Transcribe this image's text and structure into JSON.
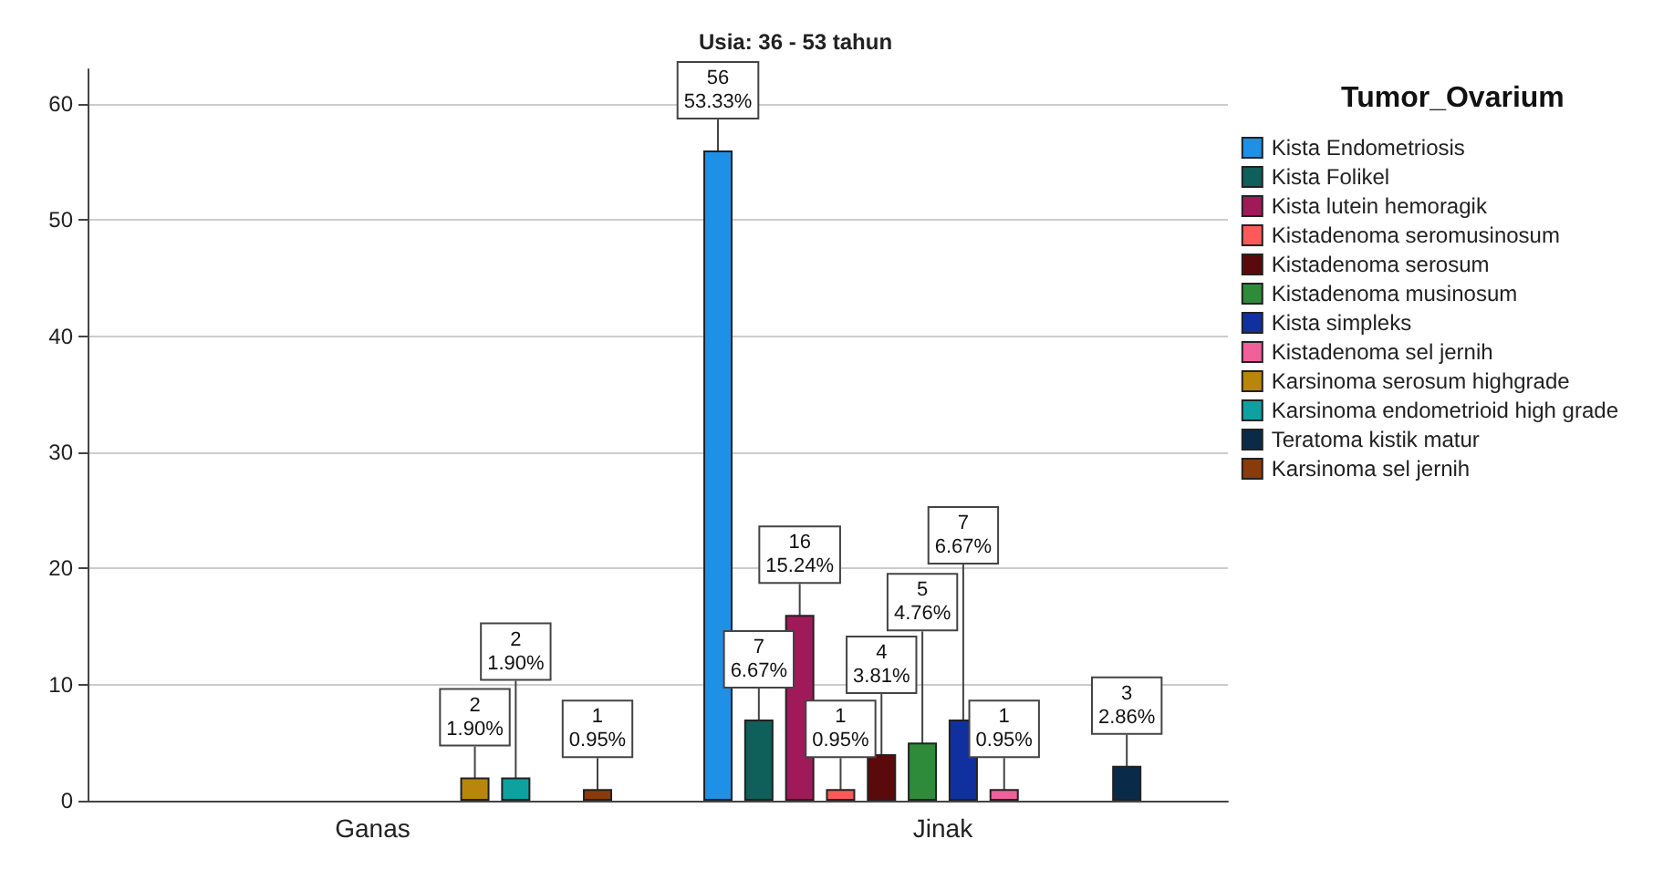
{
  "chart_data": {
    "type": "bar",
    "title": "Usia: 36 - 53 tahun",
    "legend_title": "Tumor_Ovarium",
    "categories": [
      "Ganas",
      "Jinak"
    ],
    "series": [
      {
        "name": "Kista Endometriosis",
        "color": "#1e90e6",
        "values": [
          null,
          56
        ],
        "value_labels": [
          null,
          "56\n53.33%"
        ]
      },
      {
        "name": "Kista Folikel",
        "color": "#0f5f5a",
        "values": [
          null,
          7
        ],
        "value_labels": [
          null,
          "7\n6.67%"
        ]
      },
      {
        "name": "Kista lutein hemoragik",
        "color": "#a01a5a",
        "values": [
          null,
          16
        ],
        "value_labels": [
          null,
          "16\n15.24%"
        ]
      },
      {
        "name": "Kistadenoma seromusinosum",
        "color": "#ff5a5a",
        "values": [
          null,
          1
        ],
        "value_labels": [
          null,
          "1\n0.95%"
        ]
      },
      {
        "name": "Kistadenoma serosum",
        "color": "#5a0a0a",
        "values": [
          null,
          4
        ],
        "value_labels": [
          null,
          "4\n3.81%"
        ]
      },
      {
        "name": "Kistadenoma musinosum",
        "color": "#2e8b3a",
        "values": [
          null,
          5
        ],
        "value_labels": [
          null,
          "5\n4.76%"
        ]
      },
      {
        "name": "Kista simpleks",
        "color": "#1030a0",
        "values": [
          null,
          7
        ],
        "value_labels": [
          null,
          "7\n6.67%"
        ]
      },
      {
        "name": "Kistadenoma sel jernih",
        "color": "#f0609a",
        "values": [
          null,
          1
        ],
        "value_labels": [
          null,
          "1\n0.95%"
        ]
      },
      {
        "name": "Karsinoma serosum highgrade",
        "color": "#b8860b",
        "values": [
          2,
          null
        ],
        "value_labels": [
          "2\n1.90%",
          null
        ]
      },
      {
        "name": "Karsinoma endometrioid high grade",
        "color": "#10a0a0",
        "values": [
          2,
          null
        ],
        "value_labels": [
          "2\n1.90%",
          null
        ]
      },
      {
        "name": "Teratoma kistik matur",
        "color": "#0a2a4a",
        "values": [
          null,
          3
        ],
        "value_labels": [
          null,
          "3\n2.86%"
        ]
      },
      {
        "name": "Karsinoma sel jernih",
        "color": "#8b3a0a",
        "values": [
          1,
          null
        ],
        "value_labels": [
          "1\n0.95%",
          null
        ]
      }
    ],
    "ylim": [
      0,
      63
    ],
    "yticks": [
      0,
      10,
      20,
      30,
      40,
      50,
      60
    ],
    "grid": "y",
    "legend": "right"
  }
}
